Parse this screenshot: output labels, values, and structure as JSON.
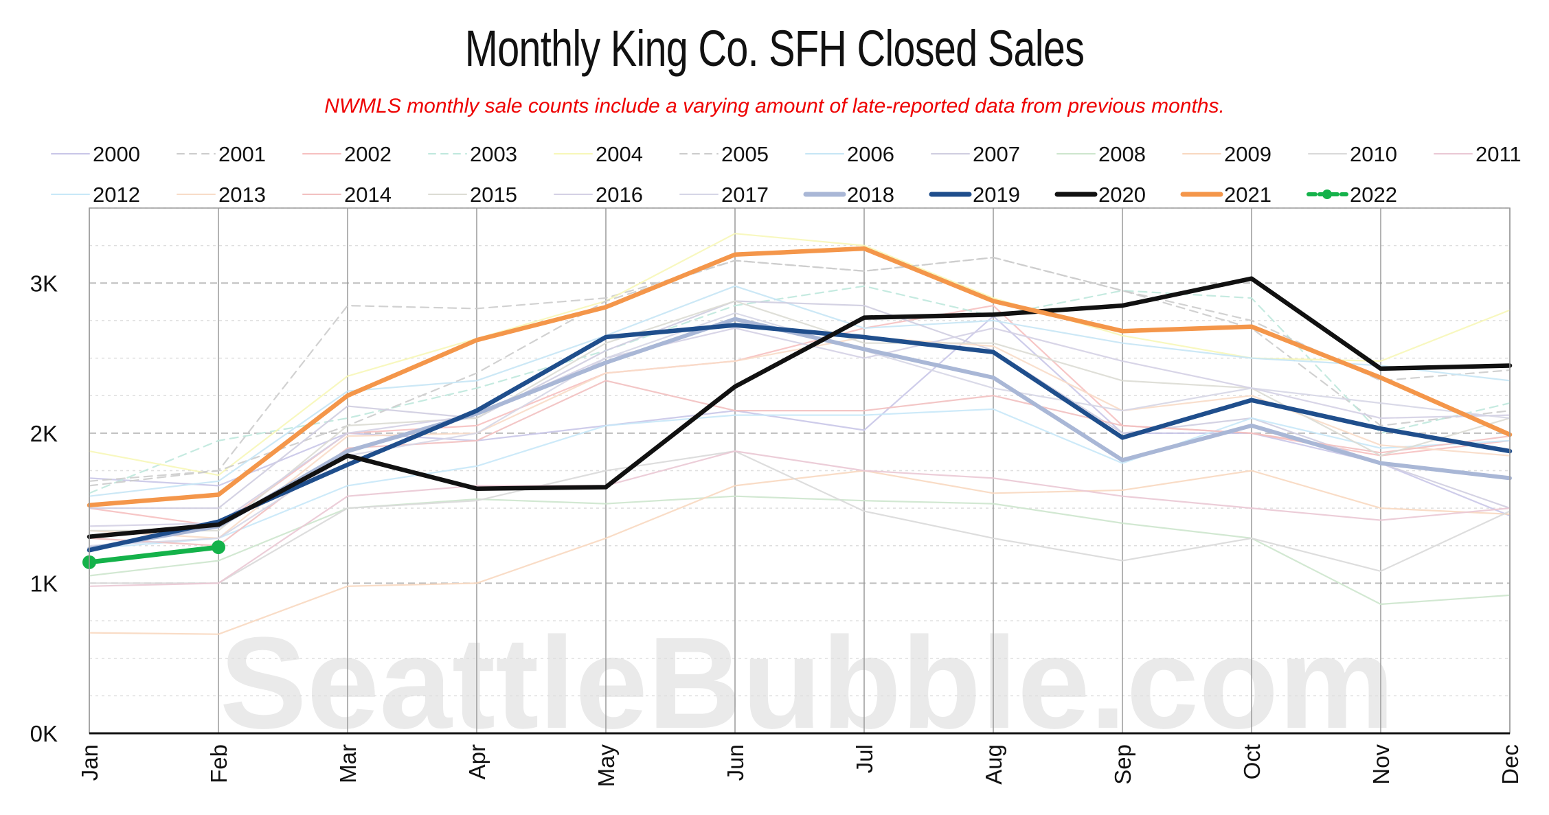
{
  "chart_data": {
    "type": "line",
    "title": "Monthly King Co. SFH Closed Sales",
    "subtitle": "NWMLS monthly sale counts include a varying amount of late-reported data from previous months.",
    "watermark": "SeattleBubble.com",
    "xlabel": "",
    "ylabel": "",
    "categories": [
      "Jan",
      "Feb",
      "Mar",
      "Apr",
      "May",
      "Jun",
      "Jul",
      "Aug",
      "Sep",
      "Oct",
      "Nov",
      "Dec"
    ],
    "yticks": [
      {
        "value": 0,
        "label": "0K"
      },
      {
        "value": 1000,
        "label": "1K"
      },
      {
        "value": 2000,
        "label": "2K"
      },
      {
        "value": 3000,
        "label": "3K"
      }
    ],
    "ylim": [
      0,
      3500
    ],
    "grid": true,
    "legend_position": "top",
    "series": [
      {
        "name": "2000",
        "color": "#c9c6e8",
        "style": "thin",
        "values": [
          1700,
          1650,
          2000,
          1950,
          2050,
          2150,
          2020,
          2780,
          2000,
          2000,
          1800,
          1450
        ]
      },
      {
        "name": "2001",
        "color": "#cccccc",
        "style": "thin-dashed",
        "values": [
          1680,
          1750,
          2850,
          2830,
          2900,
          3150,
          3080,
          3170,
          2950,
          2700,
          2050,
          2150
        ]
      },
      {
        "name": "2002",
        "color": "#f6c0c0",
        "style": "thin",
        "values": [
          1500,
          1380,
          2000,
          2050,
          2400,
          2480,
          2700,
          2850,
          2050,
          2000,
          1850,
          1950
        ]
      },
      {
        "name": "2003",
        "color": "#bfe8dd",
        "style": "thin-dashed",
        "values": [
          1600,
          1950,
          2100,
          2300,
          2550,
          2850,
          2980,
          2780,
          2950,
          2900,
          2000,
          2200
        ]
      },
      {
        "name": "2004",
        "color": "#f7f7b8",
        "style": "thin",
        "values": [
          1880,
          1720,
          2380,
          2630,
          2880,
          3330,
          3250,
          2900,
          2650,
          2500,
          2480,
          2820
        ]
      },
      {
        "name": "2005",
        "color": "#cccccc",
        "style": "thin-dashed",
        "values": [
          1650,
          1750,
          2050,
          2400,
          2880,
          3150,
          3080,
          3170,
          2950,
          2750,
          2350,
          2420
        ]
      },
      {
        "name": "2006",
        "color": "#c6e6f5",
        "style": "thin",
        "values": [
          1580,
          1680,
          2280,
          2350,
          2650,
          2980,
          2700,
          2750,
          2600,
          2500,
          2450,
          2350
        ]
      },
      {
        "name": "2007",
        "color": "#cfcde0",
        "style": "thin",
        "values": [
          1500,
          1500,
          2180,
          2100,
          2550,
          2880,
          2850,
          2550,
          2000,
          2100,
          1800,
          1500
        ]
      },
      {
        "name": "2008",
        "color": "#cde6cd",
        "style": "thin",
        "values": [
          1050,
          1150,
          1500,
          1560,
          1530,
          1580,
          1550,
          1530,
          1400,
          1300,
          860,
          920
        ]
      },
      {
        "name": "2009",
        "color": "#f8d8c0",
        "style": "thin",
        "values": [
          670,
          660,
          980,
          1000,
          1300,
          1650,
          1750,
          1600,
          1620,
          1750,
          1500,
          1460
        ]
      },
      {
        "name": "2010",
        "color": "#d9d9d9",
        "style": "thin",
        "values": [
          1000,
          1000,
          1500,
          1550,
          1750,
          1880,
          1480,
          1300,
          1150,
          1300,
          1080,
          1480
        ]
      },
      {
        "name": "2011",
        "color": "#eac8d4",
        "style": "thin",
        "values": [
          980,
          1000,
          1580,
          1650,
          1650,
          1880,
          1750,
          1700,
          1580,
          1500,
          1420,
          1500
        ]
      },
      {
        "name": "2012",
        "color": "#c8e8f8",
        "style": "thin",
        "values": [
          1230,
          1300,
          1650,
          1780,
          2050,
          2120,
          2120,
          2160,
          1800,
          2100,
          1900,
          1950
        ]
      },
      {
        "name": "2013",
        "color": "#f8dcc8",
        "style": "thin",
        "values": [
          1350,
          1300,
          1980,
          2000,
          2400,
          2480,
          2640,
          2580,
          2150,
          2250,
          1920,
          1850
        ]
      },
      {
        "name": "2014",
        "color": "#f2c0c0",
        "style": "thin",
        "values": [
          1300,
          1250,
          1900,
          1950,
          2350,
          2150,
          2150,
          2250,
          2050,
          2000,
          1870,
          1980
        ]
      },
      {
        "name": "2015",
        "color": "#dcdcd4",
        "style": "thin",
        "values": [
          1350,
          1350,
          2050,
          2100,
          2600,
          2880,
          2600,
          2600,
          2350,
          2300,
          1850,
          2100
        ]
      },
      {
        "name": "2016",
        "color": "#d4d0e4",
        "style": "thin",
        "values": [
          1380,
          1400,
          2000,
          2120,
          2500,
          2700,
          2500,
          2700,
          2480,
          2300,
          2100,
          2120
        ]
      },
      {
        "name": "2017",
        "color": "#d6d6e6",
        "style": "thin",
        "values": [
          1250,
          1300,
          1850,
          2000,
          2500,
          2800,
          2550,
          2300,
          2150,
          2300,
          2200,
          2100
        ]
      },
      {
        "name": "2018",
        "color": "#a9b7d6",
        "style": "medium",
        "values": [
          1230,
          1380,
          1880,
          2130,
          2470,
          2760,
          2560,
          2370,
          1820,
          2050,
          1800,
          1700
        ]
      },
      {
        "name": "2019",
        "color": "#1f4e8c",
        "style": "thick",
        "values": [
          1220,
          1410,
          1790,
          2150,
          2640,
          2720,
          2640,
          2540,
          1970,
          2220,
          2030,
          1880
        ]
      },
      {
        "name": "2020",
        "color": "#111111",
        "style": "thick",
        "values": [
          1310,
          1390,
          1850,
          1630,
          1640,
          2310,
          2770,
          2790,
          2850,
          3030,
          2430,
          2450
        ]
      },
      {
        "name": "2021",
        "color": "#f4964a",
        "style": "thick",
        "values": [
          1520,
          1590,
          2250,
          2620,
          2840,
          3190,
          3230,
          2880,
          2680,
          2710,
          2370,
          1990
        ]
      },
      {
        "name": "2022",
        "color": "#14b24a",
        "style": "thick-markers",
        "values": [
          1140,
          1240,
          null,
          null,
          null,
          null,
          null,
          null,
          null,
          null,
          null,
          null
        ]
      }
    ]
  }
}
